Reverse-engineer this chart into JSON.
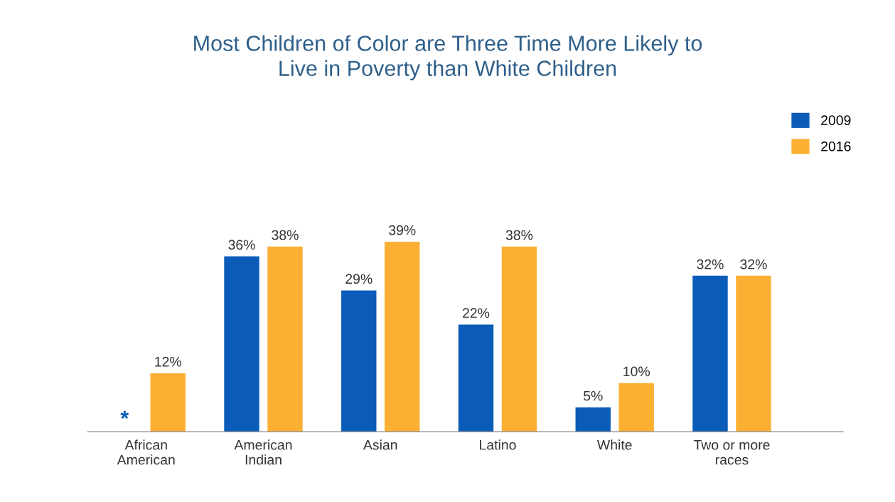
{
  "chart_data": {
    "type": "bar",
    "title": "Most Children of Color are Three Time More Likely to\nLive in Poverty than White Children",
    "categories": [
      "African\nAmerican",
      "American\nIndian",
      "Asian",
      "Latino",
      "White",
      "Two or more\nraces"
    ],
    "series": [
      {
        "name": "2009",
        "color": "#0a5cb8",
        "values": [
          null,
          36,
          29,
          22,
          5,
          32
        ],
        "value_labels": [
          "*",
          "36%",
          "29%",
          "22%",
          "5%",
          "32%"
        ]
      },
      {
        "name": "2016",
        "color": "#fbb034",
        "values": [
          12,
          38,
          39,
          38,
          10,
          32
        ],
        "value_labels": [
          "12%",
          "38%",
          "39%",
          "38%",
          "10%",
          "32%"
        ]
      }
    ],
    "legend": "top right",
    "grid": false,
    "tick_labels": "x"
  }
}
